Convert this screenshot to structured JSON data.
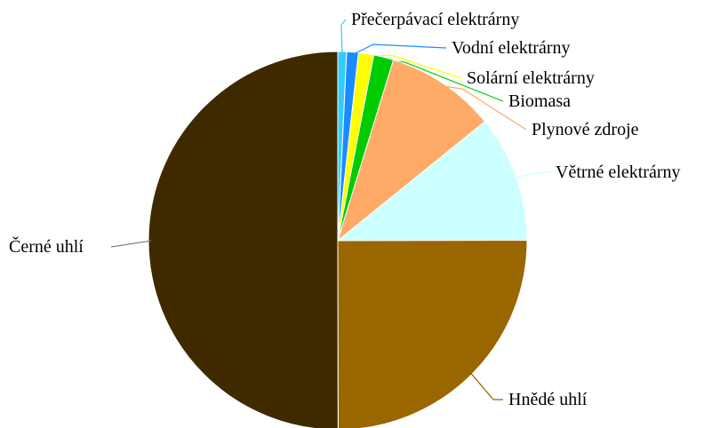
{
  "chart_data": {
    "type": "pie",
    "categories": [
      "Přečerpávací elektrárny",
      "Vodní elektrárny",
      "Solární elektrárny",
      "Biomasa",
      "Plynové zdroje",
      "Větrné elektrárny",
      "Hnědé uhlí",
      "Černé uhlí"
    ],
    "values": [
      0.75,
      1,
      1.3,
      1.7,
      9.4,
      10.8,
      25,
      50
    ],
    "colors": [
      "#33ccff",
      "#1a8cff",
      "#ffff00",
      "#00cc00",
      "#ffaa66",
      "#ccffff",
      "#996600",
      "#3f2a00"
    ]
  }
}
